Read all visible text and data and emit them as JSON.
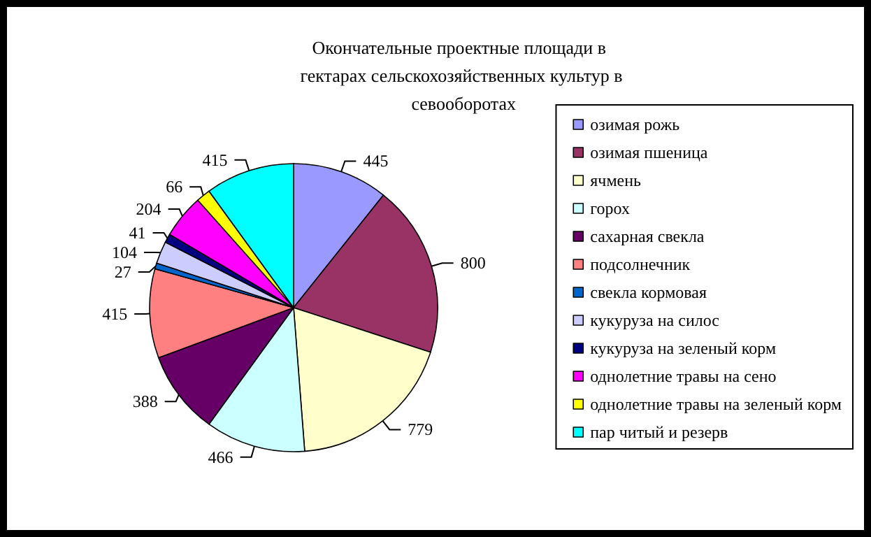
{
  "chart_data": {
    "type": "pie",
    "title": "Окончательные проектные площади в гектарах сельскохозяйственных культур в севооборотах",
    "categories": [
      "озимая рожь",
      "озимая пшеница",
      "ячмень",
      "горох",
      "сахарная свекла",
      "подсолнечник",
      "свекла кормовая",
      "кукуруза на силос",
      "кукуруза на зеленый корм",
      "однолетние травы на сено",
      "однолетние травы на зеленый корм",
      "пар читый и резерв"
    ],
    "values": [
      445,
      800,
      779,
      466,
      388,
      415,
      27,
      104,
      41,
      204,
      66,
      415
    ],
    "colors": [
      "#9999ff",
      "#993366",
      "#ffffcc",
      "#ccffff",
      "#660066",
      "#ff8080",
      "#0066cc",
      "#ccccff",
      "#000080",
      "#ff00ff",
      "#ffff00",
      "#00ffff"
    ],
    "data_labels": true,
    "legend": "right"
  }
}
